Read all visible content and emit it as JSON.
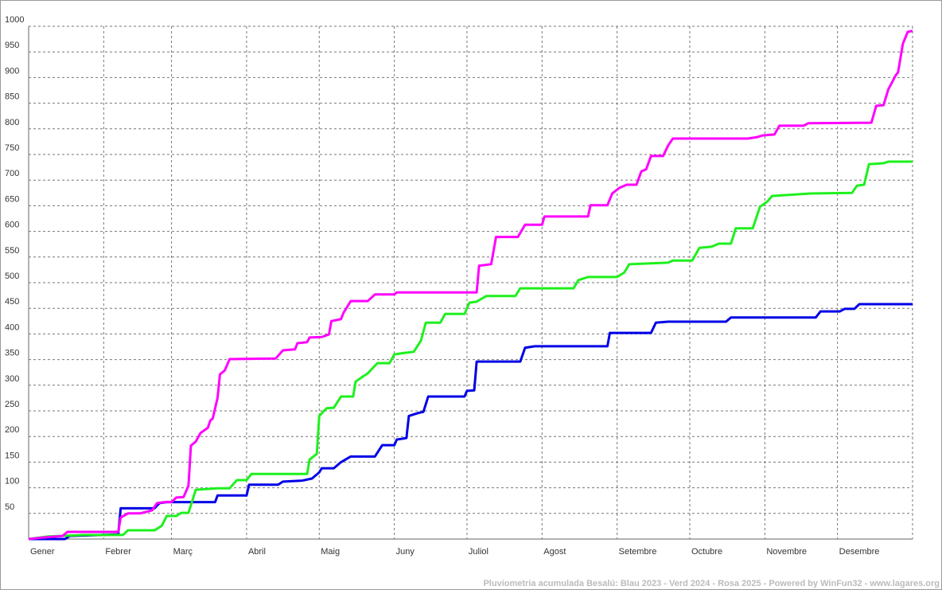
{
  "chart_data": {
    "type": "line",
    "footer": "Pluviometria acumulada Besalú: Blau 2023 - Verd 2024 - Rosa 2025 - Powered by WinFun32 - www.lagares.org",
    "xlim": [
      0,
      365
    ],
    "ylim": [
      0,
      1000
    ],
    "xticks": [
      {
        "value": 0,
        "label": "Gener"
      },
      {
        "value": 31,
        "label": "Febrer"
      },
      {
        "value": 59,
        "label": "Març"
      },
      {
        "value": 90,
        "label": "Abril"
      },
      {
        "value": 120,
        "label": "Maig"
      },
      {
        "value": 151,
        "label": "Juny"
      },
      {
        "value": 181,
        "label": "Juliol"
      },
      {
        "value": 212,
        "label": "Agost"
      },
      {
        "value": 243,
        "label": "Setembre"
      },
      {
        "value": 273,
        "label": "Octubre"
      },
      {
        "value": 304,
        "label": "Novembre"
      },
      {
        "value": 334,
        "label": "Desembre"
      }
    ],
    "yticks": [
      50,
      100,
      150,
      200,
      250,
      300,
      350,
      400,
      450,
      500,
      550,
      600,
      650,
      700,
      750,
      800,
      850,
      900,
      950,
      1000
    ],
    "grid": true,
    "series": [
      {
        "color": "#0000e6",
        "x": [
          0,
          15,
          17,
          37,
          38,
          52,
          54,
          57,
          77,
          78,
          90,
          91,
          103,
          105,
          113,
          117,
          120,
          121,
          126,
          129,
          133,
          143,
          146,
          151,
          152,
          156,
          157,
          161,
          163,
          165,
          180,
          181,
          184,
          185,
          203,
          205,
          209,
          239,
          240,
          257,
          259,
          264,
          288,
          290,
          325,
          327,
          335,
          337,
          341,
          343,
          365
        ],
        "values": [
          0,
          0,
          6,
          9,
          60,
          60,
          70,
          72,
          72,
          85,
          85,
          106,
          106,
          112,
          114,
          118,
          130,
          138,
          138,
          150,
          161,
          161,
          183,
          183,
          194,
          197,
          240,
          246,
          248,
          278,
          278,
          289,
          290,
          346,
          346,
          373,
          376,
          376,
          402,
          402,
          422,
          424,
          424,
          432,
          432,
          444,
          444,
          449,
          449,
          458,
          458
        ]
      },
      {
        "color": "#1ef01e",
        "x": [
          0,
          8,
          23,
          39,
          41,
          52,
          55,
          57,
          61,
          63,
          66,
          69,
          78,
          83,
          86,
          90,
          92,
          115,
          116,
          119,
          120,
          123,
          126,
          129,
          134,
          135,
          138,
          140,
          144,
          149,
          151,
          155,
          159,
          162,
          164,
          170,
          172,
          180,
          182,
          185,
          189,
          201,
          203,
          225,
          227,
          231,
          243,
          246,
          248,
          264,
          266,
          274,
          277,
          282,
          285,
          290,
          292,
          299,
          300,
          302,
          305,
          307,
          323,
          340,
          342,
          345,
          347,
          353,
          355,
          365
        ],
        "values": [
          0,
          5,
          8,
          8,
          17,
          17,
          26,
          45,
          45,
          51,
          51,
          96,
          99,
          99,
          115,
          115,
          127,
          127,
          155,
          166,
          240,
          255,
          256,
          278,
          278,
          307,
          317,
          323,
          343,
          343,
          360,
          363,
          365,
          387,
          422,
          422,
          439,
          439,
          461,
          463,
          474,
          474,
          489,
          489,
          505,
          511,
          511,
          520,
          536,
          539,
          543,
          543,
          568,
          570,
          576,
          576,
          606,
          606,
          620,
          648,
          658,
          669,
          674,
          675,
          689,
          691,
          731,
          733,
          736,
          736
        ]
      },
      {
        "color": "#ff00ff",
        "x": [
          0,
          6,
          14,
          16,
          37,
          38,
          41,
          46,
          51,
          53,
          56,
          59,
          61,
          64,
          66,
          67,
          69,
          71,
          74,
          75,
          76,
          78,
          79,
          81,
          83,
          102,
          105,
          110,
          111,
          115,
          116,
          121,
          124,
          125,
          129,
          130,
          133,
          140,
          143,
          151,
          152,
          185,
          186,
          191,
          193,
          202,
          205,
          212,
          213,
          231,
          232,
          239,
          241,
          244,
          247,
          251,
          253,
          255,
          257,
          262,
          264,
          266,
          297,
          301,
          303,
          308,
          310,
          320,
          322,
          348,
          350,
          353,
          355,
          358,
          359,
          361,
          363,
          365
        ],
        "values": [
          0,
          3,
          6,
          14,
          14,
          42,
          50,
          50,
          56,
          70,
          72,
          72,
          81,
          82,
          104,
          182,
          190,
          207,
          217,
          231,
          235,
          275,
          321,
          329,
          351,
          352,
          368,
          370,
          382,
          384,
          393,
          394,
          399,
          425,
          429,
          441,
          464,
          464,
          477,
          477,
          481,
          481,
          533,
          536,
          589,
          589,
          613,
          613,
          629,
          629,
          651,
          651,
          674,
          685,
          691,
          691,
          717,
          721,
          747,
          747,
          767,
          781,
          781,
          784,
          787,
          789,
          806,
          806,
          811,
          812,
          845,
          846,
          877,
          904,
          910,
          966,
          989,
          991
        ]
      }
    ]
  }
}
